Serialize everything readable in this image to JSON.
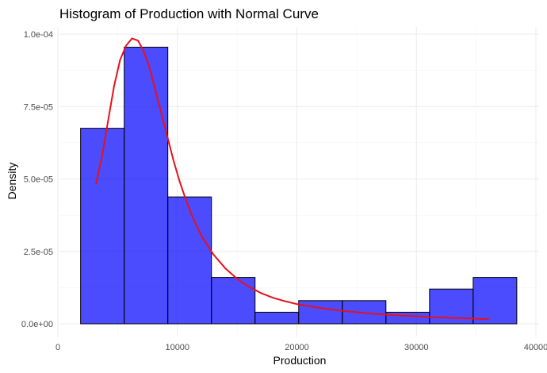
{
  "chart_data": {
    "type": "bar",
    "subtype": "histogram with density curve",
    "title": "Histogram of Production with Normal Curve",
    "xlabel": "Production",
    "ylabel": "Density",
    "xlim": [
      0,
      40000
    ],
    "ylim": [
      0,
      0.0001
    ],
    "x_ticks": [
      0,
      10000,
      20000,
      30000,
      40000
    ],
    "x_tick_labels": [
      "0",
      "10000",
      "20000",
      "30000",
      "40000"
    ],
    "y_ticks": [
      0,
      2.5e-05,
      5e-05,
      7.5e-05,
      0.0001
    ],
    "y_tick_labels": [
      "0.0e+00",
      "2.5e-05",
      "5.0e-05",
      "7.5e-05",
      "1.0e-04"
    ],
    "grid": true,
    "bins": [
      {
        "x0": 1900,
        "x1": 5550,
        "value": 6.75e-05
      },
      {
        "x0": 5550,
        "x1": 9200,
        "value": 9.55e-05
      },
      {
        "x0": 9200,
        "x1": 12850,
        "value": 4.38e-05
      },
      {
        "x0": 12850,
        "x1": 16500,
        "value": 1.6e-05
      },
      {
        "x0": 16500,
        "x1": 20150,
        "value": 4e-06
      },
      {
        "x0": 20150,
        "x1": 23800,
        "value": 8e-06
      },
      {
        "x0": 23800,
        "x1": 27450,
        "value": 8e-06
      },
      {
        "x0": 27450,
        "x1": 31100,
        "value": 4e-06
      },
      {
        "x0": 31100,
        "x1": 34750,
        "value": 1.2e-05
      },
      {
        "x0": 34750,
        "x1": 38400,
        "value": 1.6e-05
      }
    ],
    "curve": {
      "x": [
        3200,
        3700,
        4200,
        4700,
        5200,
        5700,
        6200,
        6700,
        7200,
        7700,
        8200,
        8700,
        9200,
        9700,
        10200,
        10700,
        11200,
        12000,
        13000,
        14000,
        15000,
        16000,
        17000,
        18000,
        19000,
        20000,
        22000,
        24000,
        26000,
        28000,
        30000,
        32000,
        34000,
        36000
      ],
      "y": [
        4.85e-05,
        5.8e-05,
        7e-05,
        8.2e-05,
        9.1e-05,
        9.6e-05,
        9.85e-05,
        9.78e-05,
        9.4e-05,
        8.8e-05,
        8e-05,
        7.2e-05,
        6.4e-05,
        5.6e-05,
        4.9e-05,
        4.3e-05,
        3.75e-05,
        3.05e-05,
        2.4e-05,
        1.92e-05,
        1.55e-05,
        1.28e-05,
        1.06e-05,
        9e-06,
        7.8e-06,
        6.8e-06,
        5.4e-06,
        4.4e-06,
        3.6e-06,
        3e-06,
        2.6e-06,
        2.2e-06,
        1.9e-06,
        1.6e-06
      ]
    },
    "colors": {
      "bar_fill": "#0000ff",
      "bar_fill_opacity": 0.7,
      "bar_stroke": "#000000",
      "curve": "#e8101a",
      "grid": "#ebebeb",
      "tick_text": "#4d4d4d"
    }
  }
}
